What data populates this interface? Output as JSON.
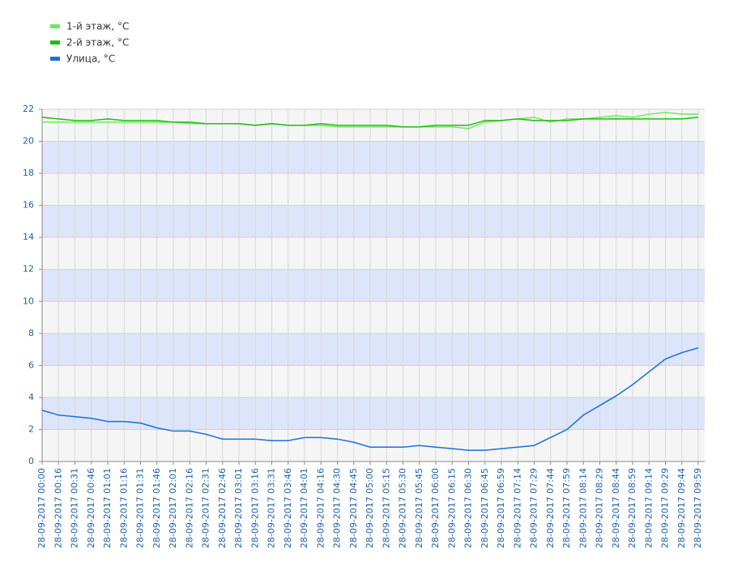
{
  "chart_data": {
    "type": "line",
    "categories": [
      "28-09-2017 00:00",
      "28-09-2017 00:16",
      "28-09-2017 00:31",
      "28-09-2017 00:46",
      "28-09-2017 01:01",
      "28-09-2017 01:16",
      "28-09-2017 01:31",
      "28-09-2017 01:46",
      "28-09-2017 02:01",
      "28-09-2017 02:16",
      "28-09-2017 02:31",
      "28-09-2017 02:46",
      "28-09-2017 03:01",
      "28-09-2017 03:16",
      "28-09-2017 03:31",
      "28-09-2017 03:46",
      "28-09-2017 04:01",
      "28-09-2017 04:16",
      "28-09-2017 04:30",
      "28-09-2017 04:45",
      "28-09-2017 05:00",
      "28-09-2017 05:15",
      "28-09-2017 05:30",
      "28-09-2017 05:45",
      "28-09-2017 06:00",
      "28-09-2017 06:15",
      "28-09-2017 06:30",
      "28-09-2017 06:45",
      "28-09-2017 06:59",
      "28-09-2017 07:14",
      "28-09-2017 07:29",
      "28-09-2017 07:44",
      "28-09-2017 07:59",
      "28-09-2017 08:14",
      "28-09-2017 08:29",
      "28-09-2017 08:44",
      "28-09-2017 08:59",
      "28-09-2017 09:14",
      "28-09-2017 09:29",
      "28-09-2017 09:44",
      "28-09-2017 09:59"
    ],
    "series": [
      {
        "name": "1-й этаж, °C",
        "color": "#66ee55",
        "values": [
          21.2,
          21.2,
          21.2,
          21.2,
          21.2,
          21.2,
          21.2,
          21.2,
          21.2,
          21.1,
          21.1,
          21.1,
          21.1,
          21.0,
          21.1,
          21.0,
          21.0,
          21.0,
          20.9,
          20.9,
          20.9,
          20.9,
          20.9,
          20.9,
          20.9,
          20.9,
          20.8,
          21.2,
          21.3,
          21.4,
          21.5,
          21.2,
          21.4,
          21.4,
          21.5,
          21.6,
          21.5,
          21.7,
          21.8,
          21.7,
          21.7
        ]
      },
      {
        "name": "2-й этаж, °C",
        "color": "#22bb11",
        "values": [
          21.5,
          21.4,
          21.3,
          21.3,
          21.4,
          21.3,
          21.3,
          21.3,
          21.2,
          21.2,
          21.1,
          21.1,
          21.1,
          21.0,
          21.1,
          21.0,
          21.0,
          21.1,
          21.0,
          21.0,
          21.0,
          21.0,
          20.9,
          20.9,
          21.0,
          21.0,
          21.0,
          21.3,
          21.3,
          21.4,
          21.3,
          21.3,
          21.3,
          21.4,
          21.4,
          21.4,
          21.4,
          21.4,
          21.4,
          21.4,
          21.5
        ]
      },
      {
        "name": "Улица, °C",
        "color": "#1a6fdf",
        "values": [
          3.2,
          2.9,
          2.8,
          2.7,
          2.5,
          2.5,
          2.4,
          2.1,
          1.9,
          1.9,
          1.7,
          1.4,
          1.4,
          1.4,
          1.3,
          1.3,
          1.5,
          1.5,
          1.4,
          1.2,
          0.9,
          0.9,
          0.9,
          1.0,
          0.9,
          0.8,
          0.7,
          0.7,
          0.8,
          0.9,
          1.0,
          1.5,
          2.0,
          2.9,
          3.5,
          4.1,
          4.8,
          5.6,
          6.4,
          6.8,
          7.1
        ]
      }
    ],
    "ylim": [
      0,
      22
    ],
    "yticks": [
      0,
      2,
      4,
      6,
      8,
      10,
      12,
      14,
      16,
      18,
      20,
      22
    ],
    "grid": true
  }
}
